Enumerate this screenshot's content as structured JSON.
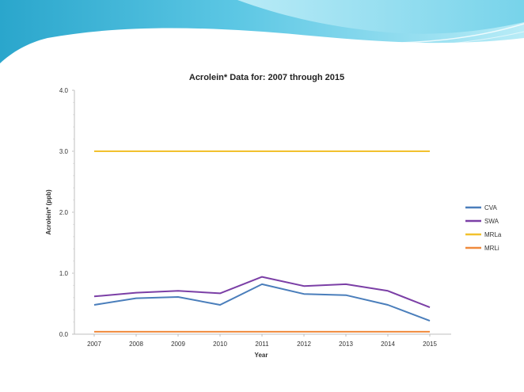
{
  "slide": {
    "banner_colors": {
      "dark": "#1f9fc4",
      "light": "#9fe3f3",
      "mid": "#4cc3e0"
    }
  },
  "chart_data": {
    "type": "line",
    "title": "Acrolein* Data for: 2007 through 2015",
    "xlabel": "Year",
    "ylabel": "Acrolein* (ppb)",
    "categories": [
      "2007",
      "2008",
      "2009",
      "2010",
      "2011",
      "2012",
      "2013",
      "2014",
      "2015"
    ],
    "ylim": [
      0,
      4
    ],
    "yticks": [
      "0.0",
      "1.0",
      "2.0",
      "3.0",
      "4.0"
    ],
    "legend_position": "right",
    "series": [
      {
        "name": "CVA",
        "color": "#4a7ebb",
        "values": [
          0.48,
          0.59,
          0.61,
          0.48,
          0.82,
          0.66,
          0.64,
          0.48,
          0.22
        ]
      },
      {
        "name": "SWA",
        "color": "#7b3fa6",
        "values": [
          0.62,
          0.68,
          0.71,
          0.67,
          0.94,
          0.79,
          0.82,
          0.71,
          0.44
        ]
      },
      {
        "name": "MRLa",
        "color": "#f2c12e",
        "values": [
          3.0,
          3.0,
          3.0,
          3.0,
          3.0,
          3.0,
          3.0,
          3.0,
          3.0
        ]
      },
      {
        "name": "MRLi",
        "color": "#f08a3c",
        "values": [
          0.04,
          0.04,
          0.04,
          0.04,
          0.04,
          0.04,
          0.04,
          0.04,
          0.04
        ]
      }
    ]
  }
}
